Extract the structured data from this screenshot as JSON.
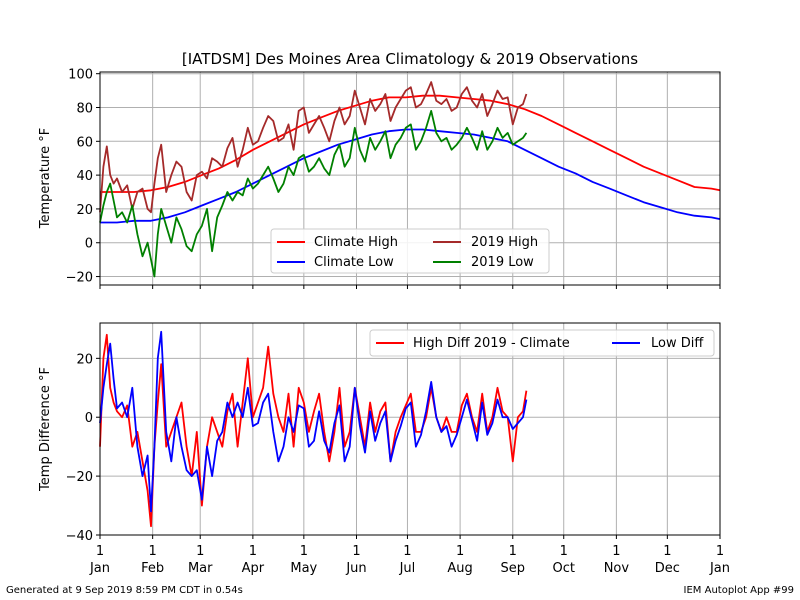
{
  "footer": {
    "left": "Generated at 9 Sep 2019 8:59 PM CDT in 0.54s",
    "right": "IEM Autoplot App #99"
  },
  "colors": {
    "climate_high": "#ff0000",
    "climate_low": "#0000ff",
    "obs_high": "#a52a2a",
    "obs_low": "#008000",
    "grid": "#b0b0b0"
  },
  "chart_data": [
    {
      "type": "line",
      "title": "[IATDSM] Des Moines Area Climatology & 2019 Observations",
      "xlabel": "",
      "ylabel": "Temperature °F",
      "xlim": [
        1,
        366
      ],
      "ylim": [
        -25,
        101
      ],
      "yticks": [
        -20,
        0,
        20,
        40,
        60,
        80,
        100
      ],
      "grid": true,
      "legend": "lower-center",
      "legend_columns": 2,
      "series": [
        {
          "name": "Climate High",
          "color": "#ff0000",
          "x": [
            1,
            11,
            21,
            31,
            41,
            51,
            61,
            71,
            81,
            91,
            101,
            111,
            121,
            131,
            141,
            151,
            161,
            171,
            181,
            191,
            201,
            211,
            221,
            231,
            241,
            251,
            261,
            271,
            281,
            291,
            301,
            311,
            321,
            331,
            341,
            351,
            361,
            366
          ],
          "y": [
            30,
            30,
            30,
            31,
            33,
            36,
            40,
            44,
            49,
            55,
            60,
            65,
            70,
            74,
            78,
            81,
            84,
            86,
            86,
            87,
            87,
            86,
            85,
            84,
            82,
            79,
            75,
            70,
            65,
            60,
            55,
            50,
            45,
            41,
            37,
            33,
            32,
            31
          ]
        },
        {
          "name": "Climate Low",
          "color": "#0000ff",
          "x": [
            1,
            11,
            21,
            31,
            41,
            51,
            61,
            71,
            81,
            91,
            101,
            111,
            121,
            131,
            141,
            151,
            161,
            171,
            181,
            191,
            201,
            211,
            221,
            231,
            241,
            251,
            261,
            271,
            281,
            291,
            301,
            311,
            321,
            331,
            341,
            351,
            361,
            366
          ],
          "y": [
            12,
            12,
            13,
            13,
            15,
            18,
            22,
            26,
            30,
            35,
            40,
            45,
            50,
            54,
            58,
            61,
            64,
            66,
            67,
            67,
            66,
            65,
            64,
            62,
            60,
            55,
            50,
            45,
            41,
            36,
            32,
            28,
            24,
            21,
            18,
            16,
            15,
            14
          ]
        },
        {
          "name": "2019 High",
          "color": "#a52a2a",
          "x": [
            1,
            3,
            5,
            7,
            9,
            11,
            14,
            17,
            20,
            23,
            26,
            29,
            31,
            33,
            35,
            37,
            40,
            43,
            46,
            49,
            52,
            55,
            58,
            61,
            64,
            67,
            70,
            73,
            76,
            79,
            82,
            85,
            88,
            91,
            94,
            97,
            100,
            103,
            106,
            109,
            112,
            115,
            118,
            121,
            124,
            127,
            130,
            133,
            136,
            139,
            142,
            145,
            148,
            151,
            154,
            157,
            160,
            163,
            166,
            169,
            172,
            175,
            178,
            181,
            184,
            187,
            190,
            193,
            196,
            199,
            202,
            205,
            208,
            211,
            214,
            217,
            220,
            223,
            226,
            229,
            232,
            235,
            238,
            241,
            244,
            247,
            250,
            252
          ],
          "y": [
            18,
            45,
            57,
            40,
            35,
            38,
            30,
            34,
            20,
            30,
            32,
            20,
            18,
            35,
            50,
            58,
            30,
            40,
            48,
            45,
            30,
            25,
            40,
            42,
            38,
            50,
            48,
            45,
            56,
            62,
            45,
            55,
            68,
            58,
            60,
            68,
            75,
            72,
            60,
            62,
            70,
            55,
            78,
            80,
            65,
            70,
            75,
            68,
            60,
            72,
            80,
            70,
            75,
            90,
            80,
            70,
            85,
            78,
            82,
            88,
            72,
            80,
            85,
            90,
            92,
            80,
            82,
            88,
            95,
            84,
            82,
            85,
            78,
            80,
            88,
            92,
            84,
            80,
            88,
            75,
            82,
            90,
            85,
            86,
            70,
            80,
            82,
            88
          ]
        },
        {
          "name": "2019 Low",
          "color": "#008000",
          "x": [
            1,
            3,
            5,
            7,
            9,
            11,
            14,
            17,
            20,
            23,
            26,
            29,
            31,
            33,
            35,
            37,
            40,
            43,
            46,
            49,
            52,
            55,
            58,
            61,
            64,
            67,
            70,
            73,
            76,
            79,
            82,
            85,
            88,
            91,
            94,
            97,
            100,
            103,
            106,
            109,
            112,
            115,
            118,
            121,
            124,
            127,
            130,
            133,
            136,
            139,
            142,
            145,
            148,
            151,
            154,
            157,
            160,
            163,
            166,
            169,
            172,
            175,
            178,
            181,
            184,
            187,
            190,
            193,
            196,
            199,
            202,
            205,
            208,
            211,
            214,
            217,
            220,
            223,
            226,
            229,
            232,
            235,
            238,
            241,
            244,
            247,
            250,
            252
          ],
          "y": [
            12,
            22,
            30,
            35,
            25,
            15,
            18,
            12,
            22,
            5,
            -8,
            0,
            -10,
            -20,
            5,
            20,
            10,
            0,
            15,
            8,
            -2,
            -5,
            5,
            10,
            20,
            -5,
            15,
            22,
            30,
            25,
            30,
            28,
            38,
            32,
            35,
            40,
            45,
            38,
            30,
            35,
            45,
            40,
            50,
            52,
            42,
            45,
            50,
            44,
            40,
            52,
            58,
            45,
            50,
            68,
            55,
            48,
            62,
            55,
            60,
            66,
            50,
            58,
            62,
            68,
            70,
            55,
            60,
            68,
            78,
            65,
            60,
            62,
            55,
            58,
            62,
            68,
            62,
            55,
            66,
            55,
            60,
            68,
            62,
            65,
            58,
            60,
            62,
            65
          ]
        }
      ]
    },
    {
      "type": "line",
      "title": "",
      "xlabel": "",
      "ylabel": "Temp Difference °F",
      "xlim": [
        1,
        366
      ],
      "ylim": [
        -40,
        32
      ],
      "yticks": [
        -40,
        -20,
        0,
        20
      ],
      "grid": true,
      "legend": "top-right",
      "legend_columns": 2,
      "xticks": [
        1,
        32,
        60,
        91,
        121,
        152,
        182,
        213,
        244,
        274,
        305,
        335,
        366
      ],
      "xtick_days": [
        "1",
        "1",
        "1",
        "1",
        "1",
        "1",
        "1",
        "1",
        "1",
        "1",
        "1",
        "1",
        "1"
      ],
      "xtick_months": [
        "Jan",
        "Feb",
        "Mar",
        "Apr",
        "May",
        "Jun",
        "Jul",
        "Aug",
        "Sep",
        "Oct",
        "Nov",
        "Dec",
        "Jan"
      ],
      "series": [
        {
          "name": "High Diff 2019 - Climate",
          "color": "#ff0000",
          "x": [
            1,
            3,
            5,
            7,
            9,
            11,
            14,
            17,
            20,
            23,
            26,
            29,
            31,
            33,
            35,
            37,
            40,
            43,
            46,
            49,
            52,
            55,
            58,
            61,
            64,
            67,
            70,
            73,
            76,
            79,
            82,
            85,
            88,
            91,
            94,
            97,
            100,
            103,
            106,
            109,
            112,
            115,
            118,
            121,
            124,
            127,
            130,
            133,
            136,
            139,
            142,
            145,
            148,
            151,
            154,
            157,
            160,
            163,
            166,
            169,
            172,
            175,
            178,
            181,
            184,
            187,
            190,
            193,
            196,
            199,
            202,
            205,
            208,
            211,
            214,
            217,
            220,
            223,
            226,
            229,
            232,
            235,
            238,
            241,
            244,
            247,
            250,
            252
          ],
          "y": [
            -10,
            20,
            28,
            10,
            5,
            2,
            0,
            4,
            -10,
            -5,
            -15,
            -25,
            -37,
            -10,
            5,
            18,
            -10,
            -5,
            0,
            5,
            -10,
            -20,
            -5,
            -30,
            -10,
            0,
            -5,
            -10,
            2,
            8,
            -10,
            5,
            20,
            0,
            5,
            10,
            24,
            8,
            0,
            -5,
            8,
            -10,
            10,
            5,
            -5,
            2,
            8,
            -5,
            -15,
            -5,
            10,
            -10,
            -5,
            10,
            0,
            -10,
            5,
            -5,
            2,
            5,
            -15,
            -5,
            0,
            4,
            8,
            -5,
            -5,
            0,
            10,
            0,
            -5,
            0,
            -5,
            -5,
            4,
            8,
            0,
            -5,
            8,
            -5,
            0,
            10,
            2,
            0,
            -15,
            0,
            2,
            9
          ]
        },
        {
          "name": "Low Diff",
          "color": "#0000ff",
          "x": [
            1,
            3,
            5,
            7,
            9,
            11,
            14,
            17,
            20,
            23,
            26,
            29,
            31,
            33,
            35,
            37,
            40,
            43,
            46,
            49,
            52,
            55,
            58,
            61,
            64,
            67,
            70,
            73,
            76,
            79,
            82,
            85,
            88,
            91,
            94,
            97,
            100,
            103,
            106,
            109,
            112,
            115,
            118,
            121,
            124,
            127,
            130,
            133,
            136,
            139,
            142,
            145,
            148,
            151,
            154,
            157,
            160,
            163,
            166,
            169,
            172,
            175,
            178,
            181,
            184,
            187,
            190,
            193,
            196,
            199,
            202,
            205,
            208,
            211,
            214,
            217,
            220,
            223,
            226,
            229,
            232,
            235,
            238,
            241,
            244,
            247,
            250,
            252
          ],
          "y": [
            -2,
            10,
            18,
            25,
            13,
            3,
            5,
            0,
            10,
            -10,
            -20,
            -13,
            -32,
            -10,
            20,
            29,
            -5,
            -15,
            0,
            -10,
            -18,
            -20,
            -18,
            -28,
            -10,
            -20,
            -8,
            -5,
            5,
            0,
            5,
            0,
            10,
            -3,
            -2,
            5,
            8,
            -5,
            -15,
            -10,
            0,
            -5,
            4,
            3,
            -10,
            -8,
            2,
            -8,
            -12,
            -2,
            4,
            -15,
            -10,
            10,
            -3,
            -12,
            2,
            -8,
            -2,
            2,
            -15,
            -8,
            -3,
            3,
            5,
            -10,
            -6,
            2,
            12,
            0,
            -5,
            -3,
            -10,
            -6,
            0,
            6,
            -1,
            -8,
            5,
            -6,
            -2,
            6,
            0,
            0,
            -4,
            -2,
            0,
            6
          ]
        }
      ]
    }
  ]
}
